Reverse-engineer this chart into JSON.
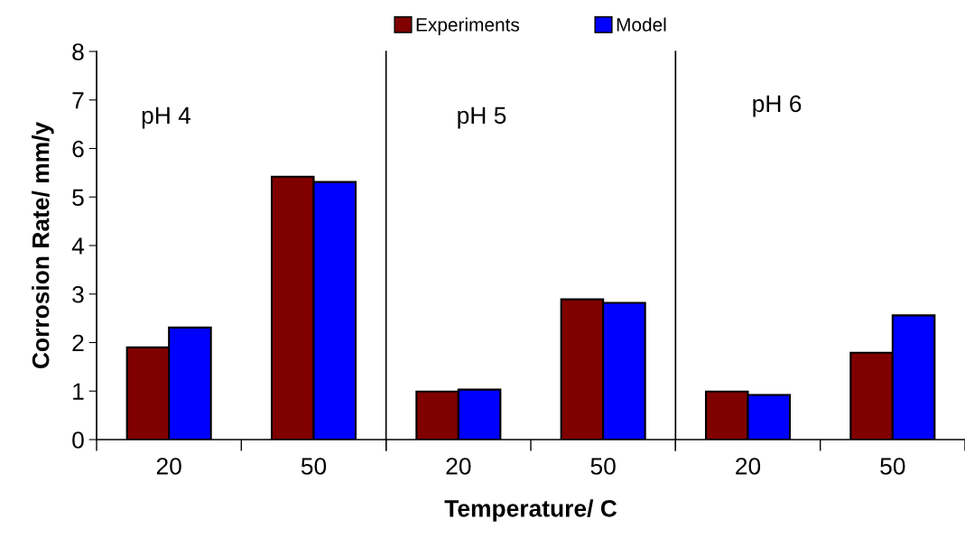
{
  "chart_data": [
    {
      "type": "bar",
      "categories": [
        "20",
        "50"
      ],
      "ylabel": "Corrosion Rate/ mm/y",
      "ylim": [
        0,
        8
      ],
      "yticks": [
        0,
        1,
        2,
        3,
        4,
        5,
        6,
        7,
        8
      ],
      "legend": "top",
      "annotations": [
        "pH 4"
      ],
      "series": [
        {
          "name": "Experiments",
          "color": "#800000",
          "values": [
            1.9,
            5.42
          ]
        },
        {
          "name": "Model",
          "color": "#0000ff",
          "values": [
            2.31,
            5.31
          ]
        }
      ]
    },
    {
      "type": "bar",
      "categories": [
        "20",
        "50"
      ],
      "xlabel": "Temperature/ C",
      "ylim": [
        0,
        8
      ],
      "yticks": [
        0,
        1,
        2,
        3,
        4,
        5,
        6,
        7,
        8
      ],
      "tick_labels": "x",
      "annotations": [
        "pH 5"
      ],
      "series": [
        {
          "color": "#800000",
          "values": [
            0.99,
            2.89
          ]
        },
        {
          "color": "#0000ff",
          "values": [
            1.03,
            2.82
          ]
        }
      ]
    },
    {
      "type": "bar",
      "categories": [
        "20",
        "50"
      ],
      "ylim": [
        0,
        8
      ],
      "yticks": [
        0,
        1,
        2,
        3,
        4,
        5,
        6,
        7,
        8
      ],
      "tick_labels": "x",
      "annotations": [
        "pH 6"
      ],
      "series": [
        {
          "color": "#800000",
          "values": [
            0.99,
            1.79
          ]
        },
        {
          "color": "#0000ff",
          "values": [
            0.92,
            2.56
          ]
        }
      ]
    }
  ]
}
